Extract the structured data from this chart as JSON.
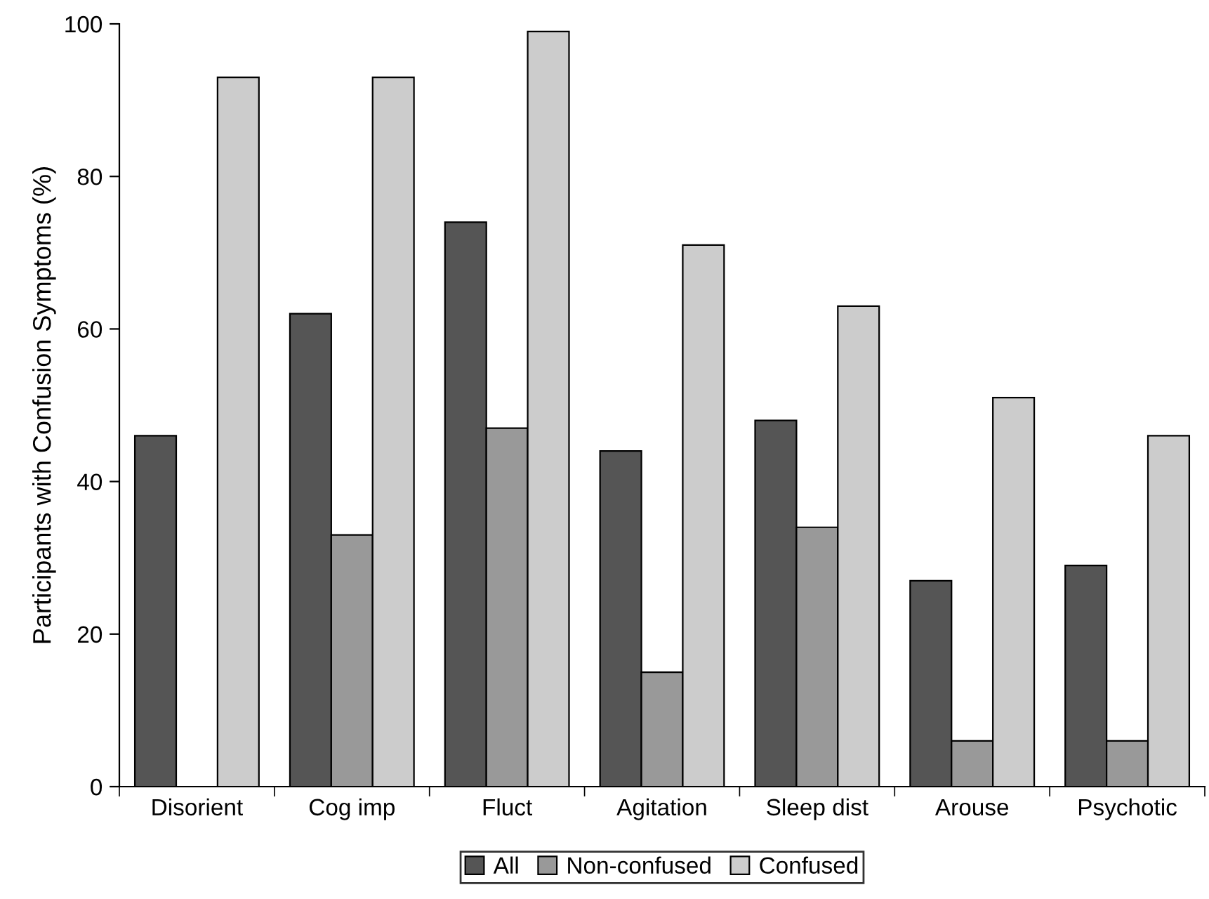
{
  "chart_data": {
    "type": "bar",
    "ylabel": "Participants with Confusion Symptoms (%)",
    "categories": [
      "Disorient",
      "Cog imp",
      "Fluct",
      "Agitation",
      "Sleep dist",
      "Arouse",
      "Psychotic"
    ],
    "series": [
      {
        "name": "All",
        "color": "#555555",
        "values": [
          46,
          62,
          74,
          44,
          48,
          27,
          29
        ]
      },
      {
        "name": "Non-confused",
        "color": "#999999",
        "values": [
          null,
          33,
          47,
          15,
          34,
          6,
          6
        ]
      },
      {
        "name": "Confused",
        "color": "#cccccc",
        "values": [
          93,
          93,
          99,
          71,
          63,
          51,
          46
        ]
      }
    ],
    "ylim": [
      0,
      100
    ],
    "yticks": [
      0,
      20,
      40,
      60,
      80,
      100
    ],
    "grid": false,
    "legend": "bottom"
  }
}
